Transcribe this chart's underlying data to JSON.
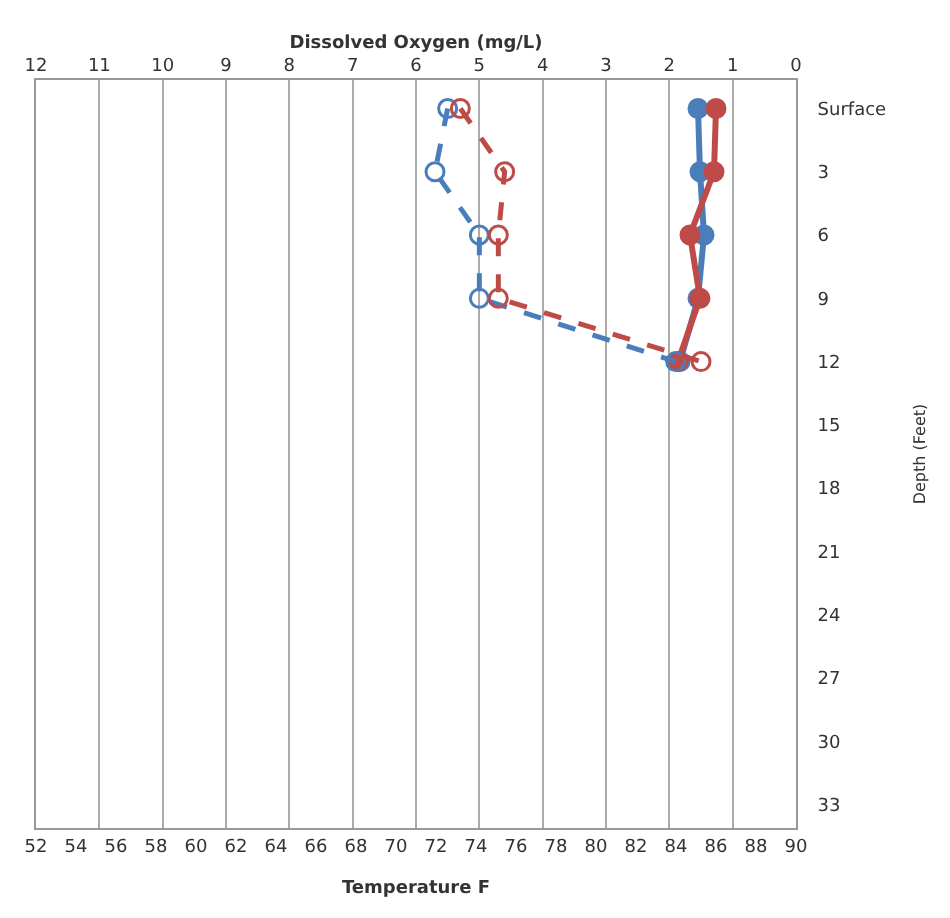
{
  "chart_data": {
    "type": "line",
    "orientation": "horizontal",
    "xlabel": "Temperature F",
    "x2label": "Dissolved Oxygen (mg/L)",
    "ylabel": "Depth (Feet)",
    "categories": [
      "Surface",
      "3",
      "6",
      "9",
      "12",
      "15",
      "18",
      "21",
      "24",
      "27",
      "30",
      "33"
    ],
    "xlim": [
      52,
      90
    ],
    "xticks": [
      52,
      54,
      56,
      58,
      60,
      62,
      64,
      66,
      68,
      70,
      72,
      74,
      76,
      78,
      80,
      82,
      84,
      86,
      88,
      90
    ],
    "x2lim": [
      12,
      0
    ],
    "x2ticks": [
      12,
      11,
      10,
      9,
      8,
      7,
      6,
      5,
      4,
      3,
      2,
      1,
      0
    ],
    "grid": "x",
    "marker": "circle",
    "series": [
      {
        "color": "#4a7ebb",
        "line_style": "solid",
        "values": [
          85.1,
          85.2,
          85.4,
          85.1,
          84.2,
          null,
          null,
          null,
          null,
          null,
          null,
          null
        ]
      },
      {
        "color": "#be4b48",
        "line_style": "solid",
        "values": [
          86.0,
          85.9,
          84.7,
          85.2,
          84.1,
          null,
          null,
          null,
          null,
          null,
          null,
          null
        ]
      },
      {
        "color": "#4a7ebb",
        "axis": "x2",
        "line_style": "dashed",
        "values": [
          5.5,
          5.7,
          5.0,
          5.0,
          1.9,
          null,
          null,
          null,
          null,
          null,
          null,
          null
        ]
      },
      {
        "color": "#be4b48",
        "axis": "x2",
        "line_style": "dashed",
        "values": [
          5.3,
          4.6,
          4.7,
          4.7,
          1.5,
          null,
          null,
          null,
          null,
          null,
          null,
          null
        ]
      }
    ]
  }
}
